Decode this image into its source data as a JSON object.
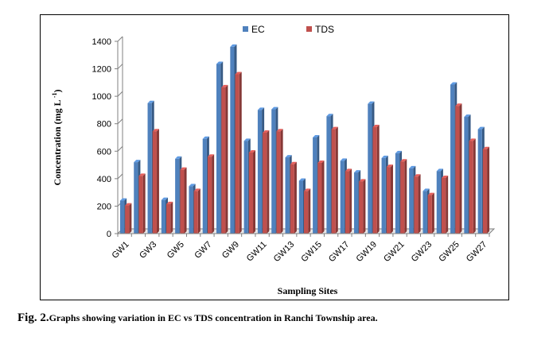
{
  "chart_data": {
    "type": "bar",
    "title": "",
    "xlabel": "Sampling Sites",
    "ylabel": "Concentration (mg L",
    "ylabel_sup": "-1",
    "ylabel_close": ")",
    "ylim": [
      0,
      1400
    ],
    "yticks": [
      0,
      200,
      400,
      600,
      800,
      1000,
      1200,
      1400
    ],
    "legend_position": "top-center",
    "categories": [
      "GW1",
      "GW2",
      "GW3",
      "GW4",
      "GW5",
      "GW6",
      "GW7",
      "GW8",
      "GW9",
      "GW10",
      "GW11",
      "GW12",
      "GW13",
      "GW14",
      "GW15",
      "GW16",
      "GW17",
      "GW18",
      "GW19",
      "GW20",
      "GW21",
      "GW22",
      "GW23",
      "GW24",
      "GW25",
      "GW26",
      "GW27"
    ],
    "tick_labels_shown": [
      "GW1",
      "GW3",
      "GW5",
      "GW7",
      "GW9",
      "GW11",
      "GW13",
      "GW15",
      "GW17",
      "GW19",
      "GW21",
      "GW23",
      "GW25",
      "GW27"
    ],
    "series": [
      {
        "name": "EC",
        "color": "#4F81BD",
        "values": [
          240,
          520,
          950,
          245,
          545,
          345,
          690,
          1235,
          1360,
          675,
          900,
          905,
          555,
          385,
          700,
          855,
          530,
          445,
          945,
          550,
          585,
          475,
          310,
          455,
          1085,
          850,
          760
        ]
      },
      {
        "name": "TDS",
        "color": "#C0504D",
        "values": [
          205,
          420,
          745,
          215,
          465,
          310,
          560,
          1065,
          1160,
          590,
          735,
          745,
          505,
          310,
          515,
          760,
          455,
          380,
          775,
          485,
          525,
          415,
          280,
          405,
          930,
          675,
          615
        ]
      }
    ]
  },
  "caption": {
    "fig_label": "Fig. 2.",
    "text": "Graphs showing variation in EC vs TDS concentration in Ranchi Township area."
  }
}
